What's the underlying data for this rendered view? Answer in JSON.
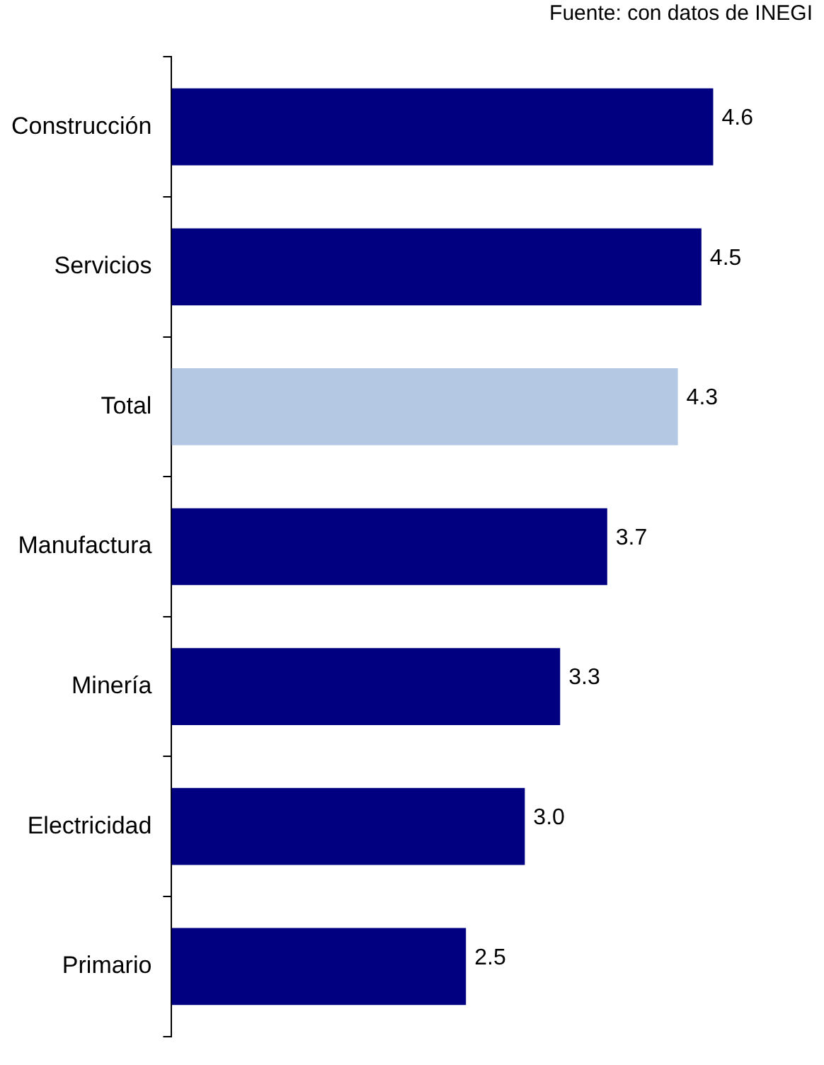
{
  "chart_data": {
    "type": "bar",
    "orientation": "horizontal",
    "annotations": [
      "Fuente: con datos de INEGI"
    ],
    "categories": [
      "Construcción",
      "Servicios",
      "Total",
      "Manufactura",
      "Minería",
      "Electricidad",
      "Primario"
    ],
    "values": [
      4.6,
      4.5,
      4.3,
      3.7,
      3.3,
      3.0,
      2.5
    ],
    "value_labels": [
      "4.6",
      "4.5",
      "4.3",
      "3.7",
      "3.3",
      "3.0",
      "2.5"
    ],
    "colors": [
      "#000080",
      "#000080",
      "#b4c8e4",
      "#000080",
      "#000080",
      "#000080",
      "#000080"
    ],
    "tick_labels": "y"
  }
}
